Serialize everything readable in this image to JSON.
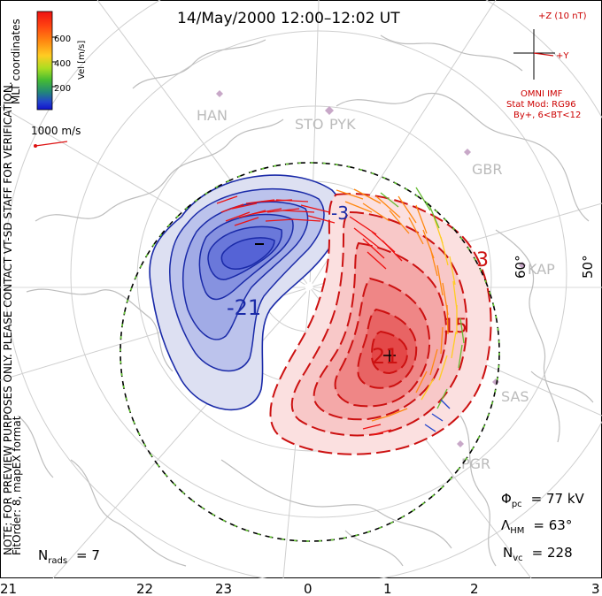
{
  "title": "14/May/2000 12:00–12:02 UT",
  "side_note": "NOTE: FOR PREVIEW PURPOSES ONLY. PLEASE CONTACT VT-SD STAFF FOR VERIFICATION.",
  "side_note2": "FitOrder: 8, mapEX format",
  "coords_label": "MLT coordinates",
  "colorbar": {
    "label": "Vel [m/s]",
    "ticks": [
      "600",
      "400",
      "200"
    ],
    "colors": [
      "#ee1111",
      "#ff5511",
      "#ff8811",
      "#ffcc22",
      "#aadd22",
      "#44bb33",
      "#228877",
      "#2244cc",
      "#1111cc"
    ]
  },
  "scale_vector": "1000 m/s",
  "imf": {
    "z_label": "+Z (10 nT)",
    "y_label": "+Y",
    "source": "OMNI IMF",
    "model": "Stat Mod: RG96",
    "condition": "By+, 6<BT<12"
  },
  "stations": [
    {
      "code": "HAN"
    },
    {
      "code": "STO"
    },
    {
      "code": "PYK"
    },
    {
      "code": "GBR"
    },
    {
      "code": "KAP"
    },
    {
      "code": "SAS"
    },
    {
      "code": "PGR"
    }
  ],
  "lat_labels": [
    "60°",
    "50°"
  ],
  "contour_labels": [
    "-21",
    "21",
    "15",
    "3",
    "-3"
  ],
  "stats": {
    "phi_pc_sym": "Φ",
    "phi_pc_sub": "pc",
    "phi_pc_value": "= 77 kV",
    "lambda_sym": "Λ",
    "lambda_sub": "HM",
    "lambda_value": "= 63°",
    "nvc_sym": "N",
    "nvc_sub": "vc",
    "nvc_value": "= 228",
    "nrads_sym": "N",
    "nrads_sub": "rads",
    "nrads_value": "= 7"
  },
  "mlt_ticks": [
    "21",
    "22",
    "23",
    "0",
    "1",
    "2",
    "3"
  ],
  "colors": {
    "negative_cell": "#2233aa",
    "positive_cell": "#cc1111",
    "boundary": "#000000",
    "boundary_dash": "#66cc33",
    "map_grey": "#c8c8c8",
    "station_marker": "#c8a8c8"
  }
}
